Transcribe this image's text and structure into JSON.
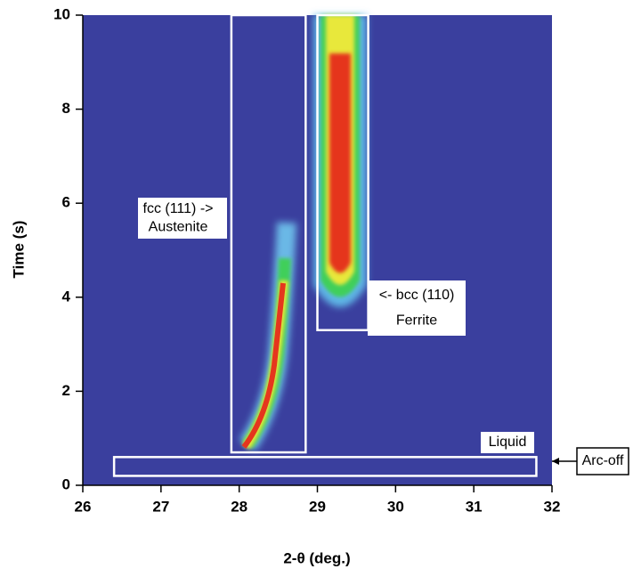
{
  "chart_data": {
    "type": "heatmap",
    "xlabel": "2-θ (deg.)",
    "ylabel": "Time (s)",
    "xlim": [
      26,
      32
    ],
    "ylim": [
      0,
      10
    ],
    "xticks": [
      26,
      27,
      28,
      29,
      30,
      31,
      32
    ],
    "yticks": [
      0,
      2,
      4,
      6,
      8,
      10
    ],
    "background": "#3a3f9e",
    "regions": [
      {
        "label": [
          "fcc (111) ->",
          "Austenite"
        ],
        "xlim": [
          27.9,
          28.85
        ],
        "ylim": [
          0.7,
          10
        ]
      },
      {
        "label": [
          "<- bcc (110)",
          "Ferrite"
        ],
        "xlim": [
          29.0,
          29.65
        ],
        "ylim": [
          3.3,
          10
        ]
      },
      {
        "label": [
          "Liquid"
        ],
        "xlim": [
          26.4,
          31.8
        ],
        "ylim": [
          0.2,
          0.6
        ]
      }
    ],
    "annotations": [
      "Arc-off"
    ]
  }
}
